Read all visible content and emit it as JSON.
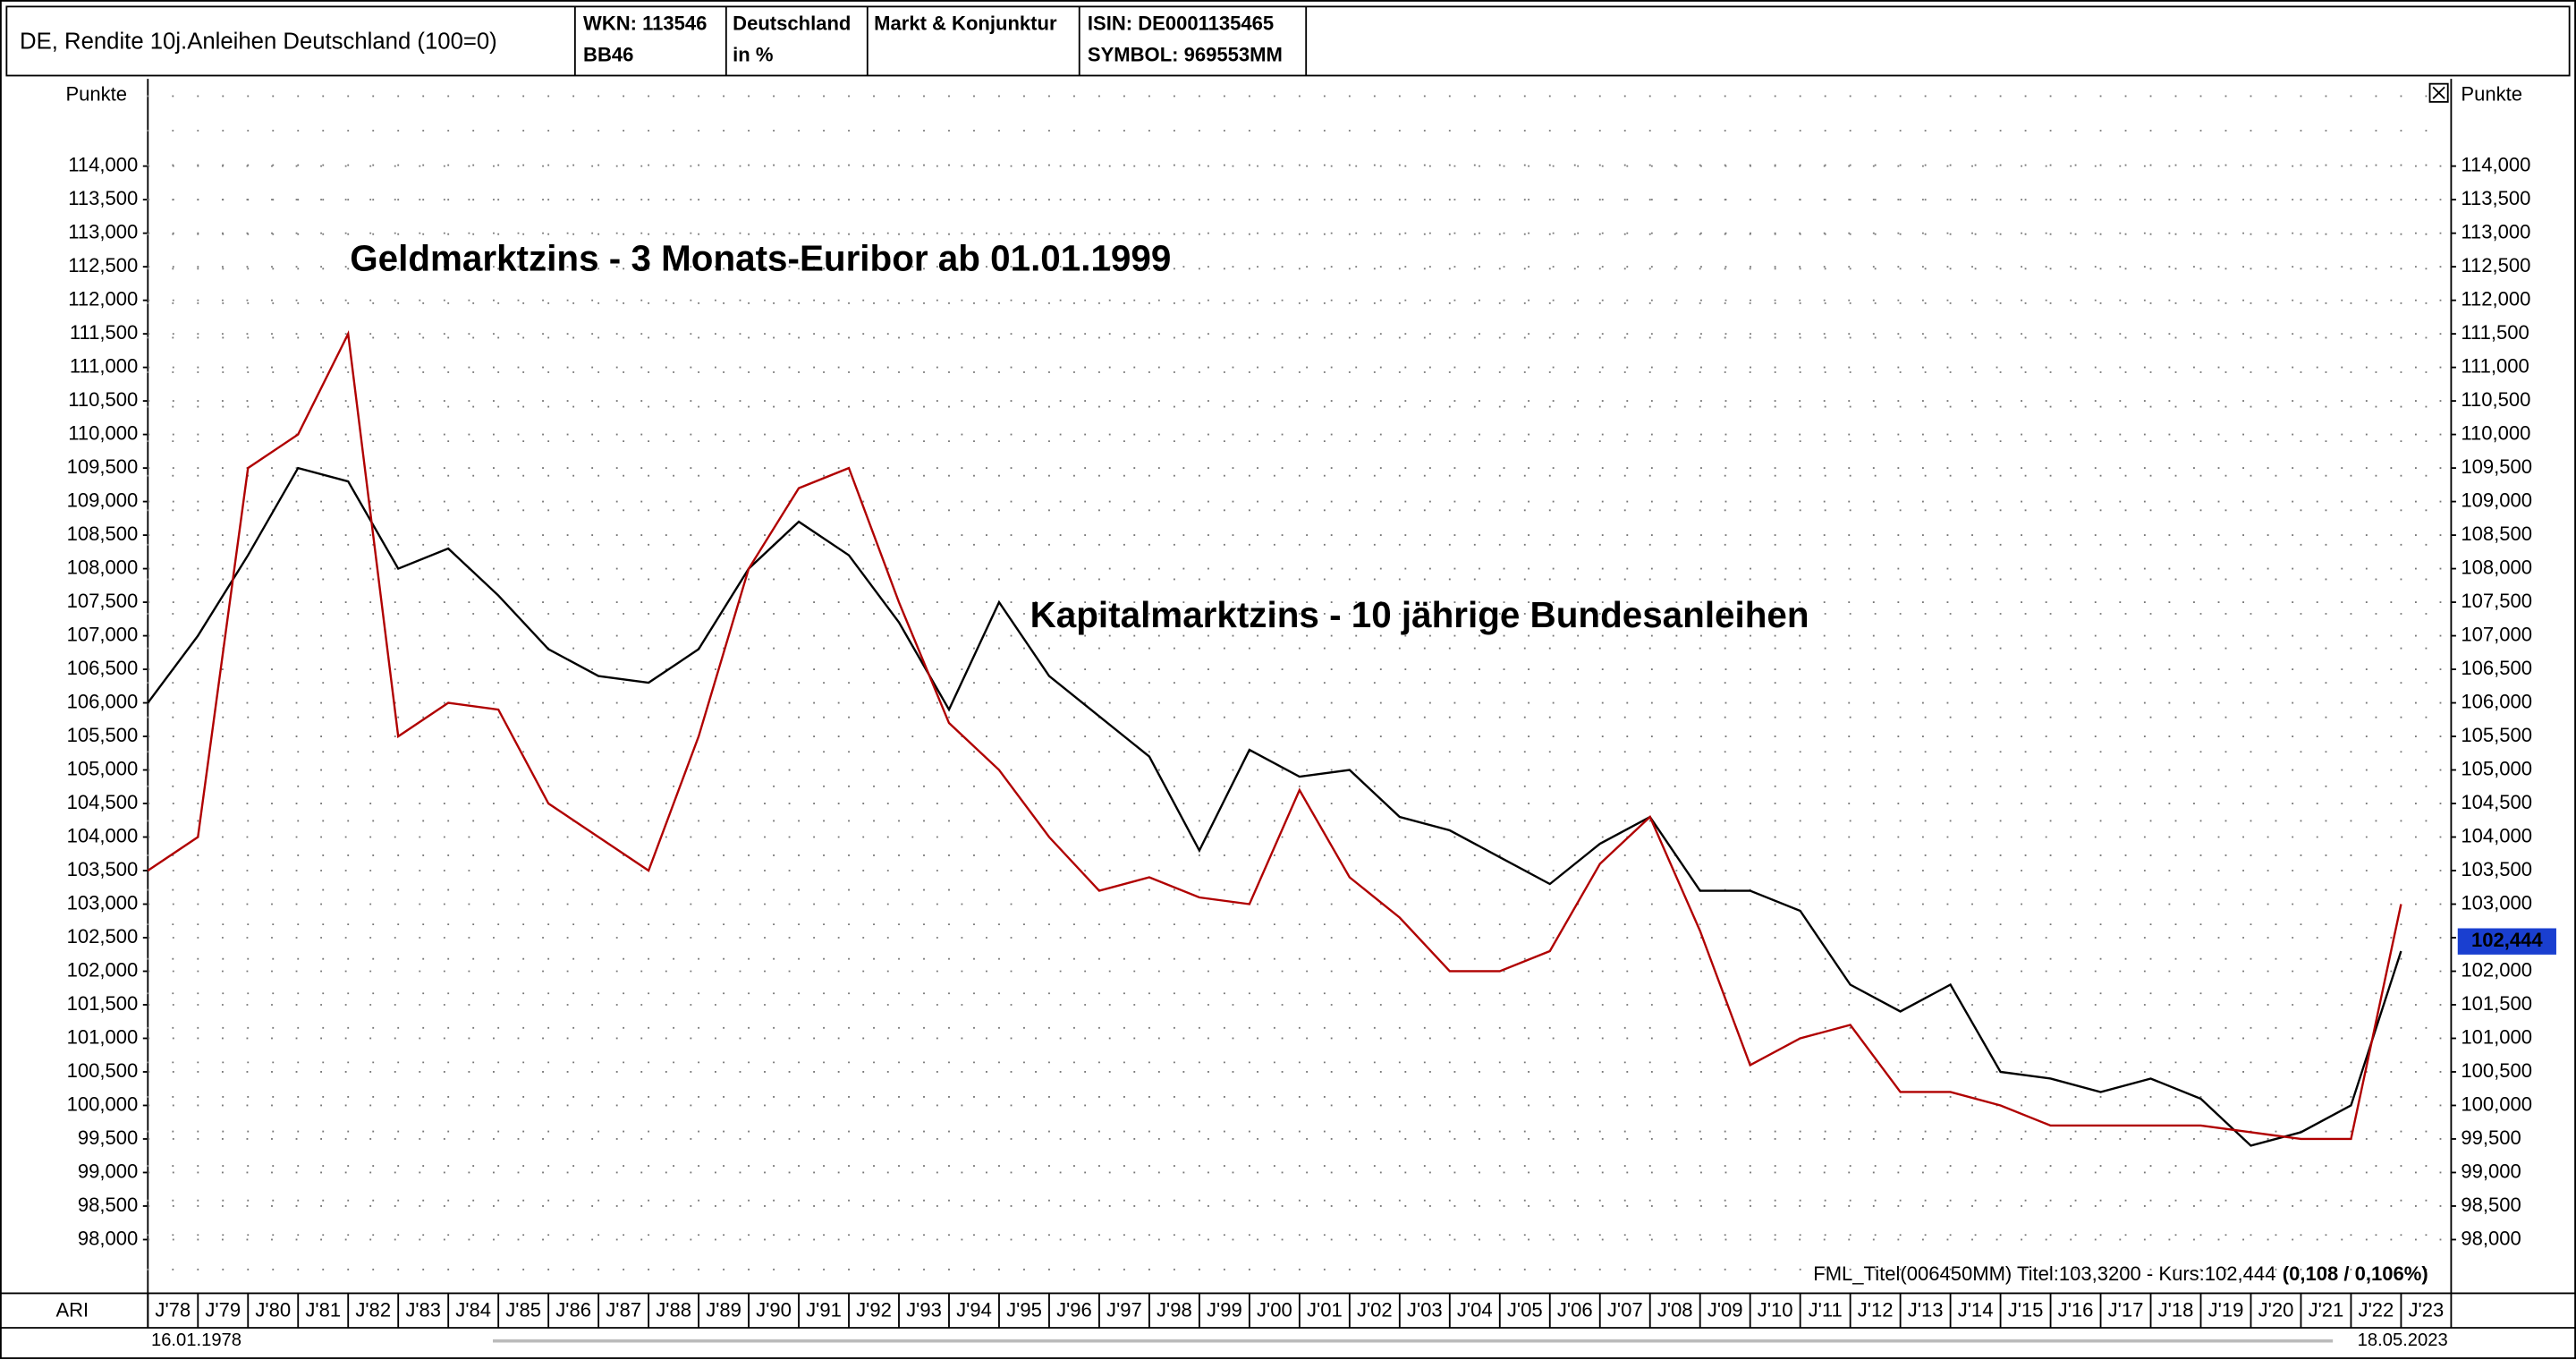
{
  "header": {
    "title": "DE, Rendite 10j.Anleihen Deutschland (100=0)",
    "wkn": "WKN: 113546",
    "wkn2": "BB46",
    "country": "Deutschland",
    "unit": "in %",
    "group": "Markt & Konjunktur",
    "isin": "ISIN: DE0001135465",
    "symbol": "SYMBOL: 969553MM"
  },
  "footer": {
    "ari": "ARI",
    "start_date": "16.01.1978",
    "end_date": "18.05.2023"
  },
  "chart_data": {
    "type": "line",
    "y_label": "Punkte",
    "y2_label": "Punkte",
    "annotations": [
      {
        "text": "Geldmarktzins - 3 Monats-Euribor ab 01.01.1999",
        "color": "#e00000"
      },
      {
        "text": "Kapitalmarktzins - 10 jährige Bundesanleihen",
        "color": "#000000"
      }
    ],
    "info_line": "FML_Titel(006450MM) Titel:103,3200 - Kurs:102,444",
    "info_line_bold": "(0,108 / 0,106%)",
    "info_color": "#c00000",
    "current_value": 102.444,
    "current_value_label": "102,444",
    "categories": [
      "J'78",
      "J'79",
      "J'80",
      "J'81",
      "J'82",
      "J'83",
      "J'84",
      "J'85",
      "J'86",
      "J'87",
      "J'88",
      "J'89",
      "J'90",
      "J'91",
      "J'92",
      "J'93",
      "J'94",
      "J'95",
      "J'96",
      "J'97",
      "J'98",
      "J'99",
      "J'00",
      "J'01",
      "J'02",
      "J'03",
      "J'04",
      "J'05",
      "J'06",
      "J'07",
      "J'08",
      "J'09",
      "J'10",
      "J'11",
      "J'12",
      "J'13",
      "J'14",
      "J'15",
      "J'16",
      "J'17",
      "J'18",
      "J'19",
      "J'20",
      "J'21",
      "J'22",
      "J'23"
    ],
    "series": [
      {
        "name": "Kapitalmarktzins",
        "color": "#000000",
        "values": [
          106.0,
          107.0,
          108.2,
          109.5,
          109.3,
          108.0,
          108.3,
          107.6,
          106.8,
          106.4,
          106.3,
          106.8,
          108.0,
          108.7,
          108.2,
          107.2,
          105.9,
          107.5,
          106.4,
          105.8,
          105.2,
          103.8,
          105.3,
          104.9,
          105.0,
          104.3,
          104.1,
          103.7,
          103.3,
          103.9,
          104.3,
          103.2,
          103.2,
          102.9,
          101.8,
          101.4,
          101.8,
          100.5,
          100.4,
          100.2,
          100.4,
          100.1,
          99.4,
          99.6,
          100.0,
          102.3
        ]
      },
      {
        "name": "Geldmarktzins",
        "color": "#b00000",
        "values": [
          103.5,
          104.0,
          109.5,
          110.0,
          111.5,
          105.5,
          106.0,
          105.9,
          104.5,
          104.0,
          103.5,
          105.5,
          108.0,
          109.2,
          109.5,
          107.5,
          105.7,
          105.0,
          104.0,
          103.2,
          103.4,
          103.1,
          103.0,
          104.7,
          103.4,
          102.8,
          102.0,
          102.0,
          102.3,
          103.6,
          104.3,
          102.6,
          100.6,
          101.0,
          101.2,
          100.2,
          100.2,
          100.0,
          99.7,
          99.7,
          99.7,
          99.7,
          99.6,
          99.5,
          99.5,
          103.0
        ]
      }
    ],
    "ylim": [
      97.2,
      115.3
    ],
    "yticks": [
      {
        "value": 98,
        "label": "98,000"
      },
      {
        "value": 98.5,
        "label": "98,500"
      },
      {
        "value": 99,
        "label": "99,000"
      },
      {
        "value": 99.5,
        "label": "99,500"
      },
      {
        "value": 100,
        "label": "100,000"
      },
      {
        "value": 100.5,
        "label": "100,500"
      },
      {
        "value": 101,
        "label": "101,000"
      },
      {
        "value": 101.5,
        "label": "101,500"
      },
      {
        "value": 102,
        "label": "102,000"
      },
      {
        "value": 102.5,
        "label": "102,500"
      },
      {
        "value": 103,
        "label": "103,000"
      },
      {
        "value": 103.5,
        "label": "103,500"
      },
      {
        "value": 104,
        "label": "104,000"
      },
      {
        "value": 104.5,
        "label": "104,500"
      },
      {
        "value": 105,
        "label": "105,000"
      },
      {
        "value": 105.5,
        "label": "105,500"
      },
      {
        "value": 106,
        "label": "106,000"
      },
      {
        "value": 106.5,
        "label": "106,500"
      },
      {
        "value": 107,
        "label": "107,000"
      },
      {
        "value": 107.5,
        "label": "107,500"
      },
      {
        "value": 108,
        "label": "108,000"
      },
      {
        "value": 108.5,
        "label": "108,500"
      },
      {
        "value": 109,
        "label": "109,000"
      },
      {
        "value": 109.5,
        "label": "109,500"
      },
      {
        "value": 110,
        "label": "110,000"
      },
      {
        "value": 110.5,
        "label": "110,500"
      },
      {
        "value": 111,
        "label": "111,000"
      },
      {
        "value": 111.5,
        "label": "111,500"
      },
      {
        "value": 112,
        "label": "112,000"
      },
      {
        "value": 112.5,
        "label": "112,500"
      },
      {
        "value": 113,
        "label": "113,000"
      },
      {
        "value": 113.5,
        "label": "113,500"
      },
      {
        "value": 114,
        "label": "114,000"
      }
    ],
    "grid": true
  }
}
